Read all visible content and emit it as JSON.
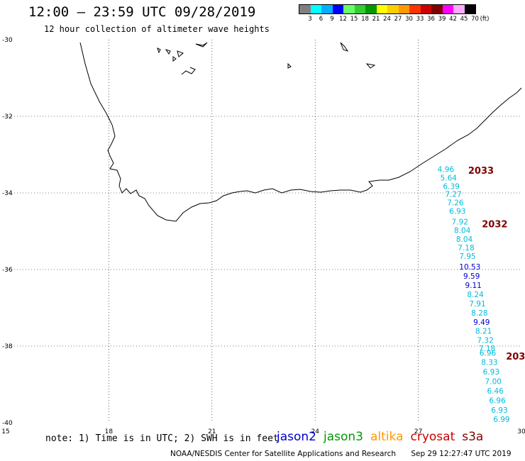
{
  "header": {
    "title": "12:00 – 23:59 UTC 09/28/2019",
    "subtitle": "12 hour collection of altimeter wave heights"
  },
  "colorbar": {
    "colors": [
      "#808080",
      "#00ffff",
      "#00b0ff",
      "#0000ff",
      "#66ff66",
      "#33cc33",
      "#009900",
      "#ffff00",
      "#ffcc00",
      "#ff9900",
      "#ff3300",
      "#cc0000",
      "#800000",
      "#ff00ff",
      "#ffaaff",
      "#000000"
    ],
    "labels": [
      "3",
      "6",
      "9",
      "12",
      "15",
      "18",
      "21",
      "24",
      "27",
      "30",
      "33",
      "36",
      "39",
      "42",
      "45",
      "70"
    ],
    "unit": "(ft)"
  },
  "map": {
    "lon_range": [
      15,
      30
    ],
    "lat_range": [
      -40,
      -30
    ],
    "x_ticks": [
      "15",
      "18",
      "21",
      "24",
      "27",
      "30"
    ],
    "y_ticks": [
      "-30",
      "-32",
      "-34",
      "-36",
      "-38",
      "-40"
    ],
    "grid": "dotted"
  },
  "chart_data": {
    "type": "scatter",
    "xlabel": "",
    "ylabel": "",
    "xlim": [
      15,
      30
    ],
    "ylim": [
      -40,
      -30
    ],
    "unit": "ft",
    "points": [
      {
        "lon": 27.8,
        "lat": -33.45,
        "value": "4.96",
        "color": "#00bbdd"
      },
      {
        "lon": 27.88,
        "lat": -33.68,
        "value": "5.64",
        "color": "#00bbdd"
      },
      {
        "lon": 27.96,
        "lat": -33.9,
        "value": "6.39",
        "color": "#00bbdd"
      },
      {
        "lon": 28.02,
        "lat": -34.1,
        "value": "7.27",
        "color": "#00bbdd"
      },
      {
        "lon": 28.08,
        "lat": -34.32,
        "value": "7.26",
        "color": "#00bbdd"
      },
      {
        "lon": 28.14,
        "lat": -34.55,
        "value": "6.93",
        "color": "#00bbdd"
      },
      {
        "lon": 28.21,
        "lat": -34.82,
        "value": "7.92",
        "color": "#00bbdd"
      },
      {
        "lon": 28.28,
        "lat": -35.05,
        "value": "8.04",
        "color": "#00bbdd"
      },
      {
        "lon": 28.34,
        "lat": -35.28,
        "value": "8.04",
        "color": "#00bbdd"
      },
      {
        "lon": 28.39,
        "lat": -35.5,
        "value": "7.18",
        "color": "#00bbdd"
      },
      {
        "lon": 28.43,
        "lat": -35.72,
        "value": "7.95",
        "color": "#00bbdd"
      },
      {
        "lon": 28.5,
        "lat": -36.0,
        "value": "10.53",
        "color": "#0000cc"
      },
      {
        "lon": 28.55,
        "lat": -36.24,
        "value": "9.59",
        "color": "#0000cc"
      },
      {
        "lon": 28.6,
        "lat": -36.48,
        "value": "9.11",
        "color": "#0000cc"
      },
      {
        "lon": 28.66,
        "lat": -36.72,
        "value": "8.24",
        "color": "#00bbdd"
      },
      {
        "lon": 28.72,
        "lat": -36.96,
        "value": "7.91",
        "color": "#00bbdd"
      },
      {
        "lon": 28.78,
        "lat": -37.2,
        "value": "8.28",
        "color": "#00bbdd"
      },
      {
        "lon": 28.84,
        "lat": -37.44,
        "value": "9.49",
        "color": "#0000cc"
      },
      {
        "lon": 28.9,
        "lat": -37.68,
        "value": "8.21",
        "color": "#00bbdd"
      },
      {
        "lon": 28.95,
        "lat": -37.92,
        "value": "7.32",
        "color": "#00bbdd"
      },
      {
        "lon": 29.0,
        "lat": -38.13,
        "value": "7.18",
        "color": "#00bbdd"
      },
      {
        "lon": 29.02,
        "lat": -38.25,
        "value": "6.96",
        "color": "#00bbdd"
      },
      {
        "lon": 29.07,
        "lat": -38.49,
        "value": "8.33",
        "color": "#00bbdd"
      },
      {
        "lon": 29.12,
        "lat": -38.74,
        "value": "6.93",
        "color": "#00bbdd"
      },
      {
        "lon": 29.18,
        "lat": -38.99,
        "value": "7.00",
        "color": "#00bbdd"
      },
      {
        "lon": 29.24,
        "lat": -39.24,
        "value": "6.46",
        "color": "#00bbdd"
      },
      {
        "lon": 29.3,
        "lat": -39.49,
        "value": "6.96",
        "color": "#00bbdd"
      },
      {
        "lon": 29.36,
        "lat": -39.74,
        "value": "6.93",
        "color": "#00bbdd"
      },
      {
        "lon": 29.42,
        "lat": -39.98,
        "value": "6.99",
        "color": "#00bbdd"
      }
    ],
    "track_labels": [
      {
        "lon": 28.45,
        "lat": -33.5,
        "text": "2033",
        "color": "#800000"
      },
      {
        "lon": 28.85,
        "lat": -34.9,
        "text": "2032",
        "color": "#800000"
      },
      {
        "lon": 29.55,
        "lat": -38.35,
        "text": "203",
        "color": "#800000"
      }
    ]
  },
  "footer": {
    "note": "note: 1) Time is in UTC; 2) SWH is in feet",
    "legend": [
      {
        "name": "jason2",
        "color": "#0000cc"
      },
      {
        "name": "jason3",
        "color": "#009900"
      },
      {
        "name": "altika",
        "color": "#ff9900"
      },
      {
        "name": "cryosat",
        "color": "#cc0000"
      },
      {
        "name": "s3a",
        "color": "#800000"
      }
    ],
    "credit": "NOAA/NESDIS Center for Satellite Applications and Research",
    "timestamp": "Sep 29 12:27:47 UTC 2019"
  }
}
